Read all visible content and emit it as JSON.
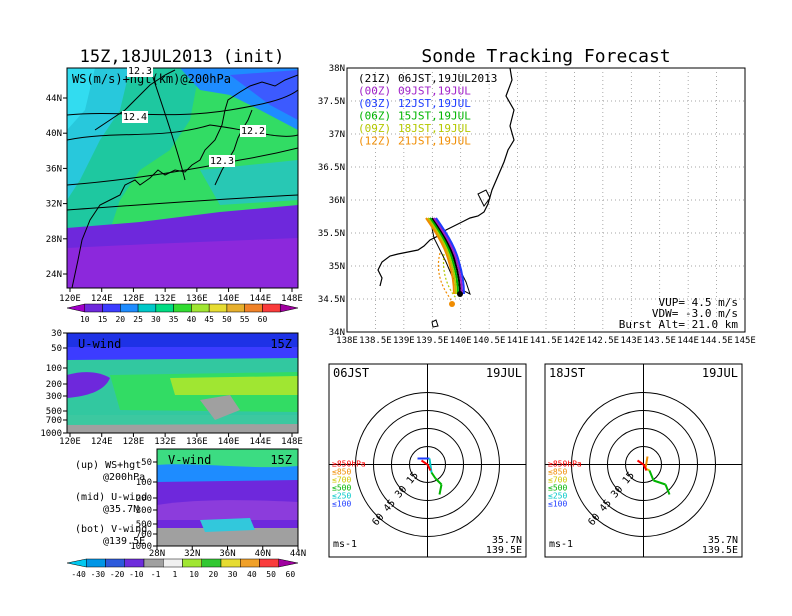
{
  "left_title": "15Z,18JUL2013 (init)",
  "right_title": "Sonde Tracking Forecast",
  "map_panel": {
    "label": "WS(m/s)+hgt(km)@200hPa",
    "xticks": [
      "120E",
      "124E",
      "128E",
      "132E",
      "136E",
      "140E",
      "144E",
      "148E"
    ],
    "yticks": [
      "24N",
      "28N",
      "32N",
      "36N",
      "40N",
      "44N"
    ],
    "contour_labels": [
      "12.3",
      "12.4",
      "12.2",
      "12.3"
    ],
    "colorbar_labels": [
      "10",
      "15",
      "20",
      "25",
      "30",
      "35",
      "40",
      "45",
      "50",
      "55",
      "60"
    ]
  },
  "uwind_panel": {
    "title": "U-wind",
    "time": "15Z",
    "yticks": [
      "30",
      "50",
      "100",
      "200",
      "300",
      "500",
      "700",
      "1000"
    ],
    "xticks": [
      "120E",
      "124E",
      "128E",
      "132E",
      "136E",
      "140E",
      "144E",
      "148E"
    ]
  },
  "vwind_panel": {
    "title": "V-wind",
    "time": "15Z",
    "yticks": [
      "50",
      "100",
      "200",
      "300",
      "500",
      "700",
      "1000"
    ],
    "xticks": [
      "28N",
      "32N",
      "36N",
      "40N",
      "44N"
    ],
    "colorbar_labels": [
      "-40",
      "-30",
      "-20",
      "-10",
      "-1",
      "1",
      "10",
      "20",
      "30",
      "40",
      "50",
      "60"
    ]
  },
  "legend_notes": [
    {
      "line1": "(up) WS+hgt",
      "line2": "@200hPa"
    },
    {
      "line1": "(mid) U-wind",
      "line2": "@35.7N"
    },
    {
      "line1": "(bot) V-wind",
      "line2": "@139.5E"
    }
  ],
  "track_panel": {
    "launches": [
      {
        "utc": "(21Z)",
        "jst": "06JST,19JUL2013",
        "color": "#000000"
      },
      {
        "utc": "(00Z)",
        "jst": "09JST,19JUL",
        "color": "#a020c8"
      },
      {
        "utc": "(03Z)",
        "jst": "12JST,19JUL",
        "color": "#1e3cff"
      },
      {
        "utc": "(06Z)",
        "jst": "15JST,19JUL",
        "color": "#00b400"
      },
      {
        "utc": "(09Z)",
        "jst": "18JST,19JUL",
        "color": "#b4c800"
      },
      {
        "utc": "(12Z)",
        "jst": "21JST,19JUL",
        "color": "#f08c00"
      }
    ],
    "yticks": [
      "34N",
      "34.5N",
      "35N",
      "35.5N",
      "36N",
      "36.5N",
      "37N",
      "37.5N",
      "38N"
    ],
    "xticks": [
      "138E",
      "138.5E",
      "139E",
      "139.5E",
      "140E",
      "140.5E",
      "141E",
      "141.5E",
      "142E",
      "142.5E",
      "143E",
      "143.5E",
      "144E",
      "144.5E",
      "145E"
    ],
    "vup": "VUP= 4.5 m/s",
    "vdw": "VDW= -3.0 m/s",
    "burst": "Burst Alt= 21.0 km"
  },
  "hodographs": [
    {
      "time_label": "06JST",
      "date_label": "19JUL",
      "lat": "35.7N",
      "lon": "139.5E",
      "unit": "ms-1",
      "ring_labels": [
        "15",
        "30",
        "45",
        "60"
      ],
      "levels": [
        "≥850hPa",
        "≤850",
        "≤700",
        "≤500",
        "≤250",
        "≤100"
      ]
    },
    {
      "time_label": "18JST",
      "date_label": "19JUL",
      "lat": "35.7N",
      "lon": "139.5E",
      "unit": "ms-1",
      "ring_labels": [
        "15",
        "30",
        "45",
        "60"
      ],
      "levels": [
        "≥850hPa",
        "≤850",
        "≤700",
        "≤500",
        "≤250",
        "≤100"
      ]
    }
  ],
  "colors": {
    "ws_scale": [
      "#a000c8",
      "#6e28dc",
      "#3c3cff",
      "#1e8cff",
      "#00c8c8",
      "#00dc82",
      "#32dc32",
      "#a0e632",
      "#e6dc32",
      "#e6af2d",
      "#f08228",
      "#fa3c3c",
      "#a000a0"
    ],
    "v_scale": [
      "#00c8f0",
      "#0096e6",
      "#2d5adc",
      "#6e2ddc",
      "#a0a0a0",
      "#f0f0f0",
      "#a0e632",
      "#32c832",
      "#e6dc32",
      "#f0a028",
      "#fa3c3c",
      "#a000a0"
    ],
    "levels": [
      "#ff0000",
      "#f08c00",
      "#d2c800",
      "#00b400",
      "#00c8c8",
      "#1e3cff"
    ]
  }
}
